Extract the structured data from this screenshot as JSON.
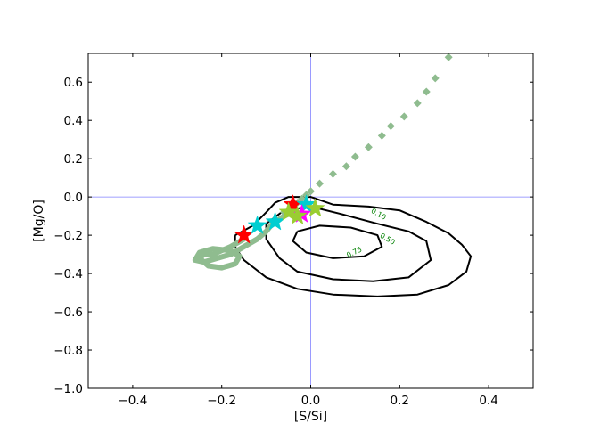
{
  "chart_data": {
    "type": "line",
    "title": "",
    "xlabel": "[S/Si]",
    "ylabel": "[Mg/O]",
    "xlim": [
      -0.5,
      0.5
    ],
    "ylim": [
      -1.0,
      0.75
    ],
    "xticks": [
      -0.4,
      -0.2,
      0.0,
      0.2,
      0.4
    ],
    "xtick_labels": [
      "−0.4",
      "−0.2",
      "0.0",
      "0.2",
      "0.4"
    ],
    "yticks": [
      -1.0,
      -0.8,
      -0.6,
      -0.4,
      -0.2,
      0.0,
      0.2,
      0.4,
      0.6
    ],
    "ytick_labels": [
      "−1.0",
      "−0.8",
      "−0.6",
      "−0.4",
      "−0.2",
      "0.0",
      "0.2",
      "0.4",
      "0.6"
    ],
    "grid": false,
    "reference_lines": {
      "x": 0.0,
      "y": 0.0,
      "color": "#8080ff"
    },
    "contours": [
      {
        "label": "0.10",
        "color": "#000000",
        "points": [
          [
            -0.17,
            -0.2
          ],
          [
            -0.13,
            -0.15
          ],
          [
            -0.1,
            -0.08
          ],
          [
            -0.08,
            -0.03
          ],
          [
            -0.05,
            0.0
          ],
          [
            0.0,
            0.0
          ],
          [
            0.05,
            -0.04
          ],
          [
            0.13,
            -0.05
          ],
          [
            0.2,
            -0.07
          ],
          [
            0.26,
            -0.13
          ],
          [
            0.31,
            -0.19
          ],
          [
            0.34,
            -0.25
          ],
          [
            0.36,
            -0.31
          ],
          [
            0.35,
            -0.39
          ],
          [
            0.31,
            -0.46
          ],
          [
            0.24,
            -0.51
          ],
          [
            0.15,
            -0.52
          ],
          [
            0.05,
            -0.51
          ],
          [
            -0.03,
            -0.48
          ],
          [
            -0.1,
            -0.42
          ],
          [
            -0.15,
            -0.33
          ],
          [
            -0.17,
            -0.26
          ],
          [
            -0.17,
            -0.2
          ]
        ],
        "label_pos": [
          0.44,
          -0.11
        ]
      },
      {
        "label": "0.50",
        "color": "#000000",
        "points": [
          [
            -0.1,
            -0.14
          ],
          [
            -0.06,
            -0.07
          ],
          [
            0.0,
            -0.05
          ],
          [
            0.07,
            -0.09
          ],
          [
            0.15,
            -0.14
          ],
          [
            0.22,
            -0.18
          ],
          [
            0.26,
            -0.23
          ],
          [
            0.27,
            -0.33
          ],
          [
            0.22,
            -0.42
          ],
          [
            0.14,
            -0.44
          ],
          [
            0.05,
            -0.43
          ],
          [
            -0.03,
            -0.39
          ],
          [
            -0.07,
            -0.32
          ],
          [
            -0.1,
            -0.22
          ],
          [
            -0.1,
            -0.14
          ]
        ],
        "label_pos": [
          0.45,
          -0.23
        ]
      },
      {
        "label": "0.75",
        "color": "#000000",
        "points": [
          [
            -0.03,
            -0.18
          ],
          [
            0.02,
            -0.15
          ],
          [
            0.09,
            -0.16
          ],
          [
            0.15,
            -0.2
          ],
          [
            0.16,
            -0.26
          ],
          [
            0.12,
            -0.31
          ],
          [
            0.05,
            -0.32
          ],
          [
            -0.01,
            -0.29
          ],
          [
            -0.04,
            -0.23
          ],
          [
            -0.03,
            -0.18
          ]
        ],
        "label_pos": [
          0.35,
          -0.3
        ]
      }
    ],
    "series": [
      {
        "style": "dotted-diamond",
        "color": "#8fbc8f",
        "x": [
          -0.06,
          -0.05,
          -0.04,
          -0.03,
          -0.02,
          -0.01,
          0.0,
          0.02,
          0.05,
          0.08,
          0.1,
          0.13,
          0.16,
          0.18,
          0.21,
          0.24,
          0.26,
          0.28,
          0.31
        ],
        "y": [
          -0.08,
          -0.07,
          -0.05,
          -0.03,
          -0.01,
          0.01,
          0.03,
          0.07,
          0.12,
          0.16,
          0.21,
          0.26,
          0.32,
          0.37,
          0.42,
          0.49,
          0.55,
          0.62,
          0.73
        ]
      },
      {
        "style": "thick-line",
        "color": "#8fbc8f",
        "x": [
          -0.15,
          -0.18,
          -0.2,
          -0.22,
          -0.24,
          -0.25,
          -0.23,
          -0.2,
          -0.17,
          -0.16,
          -0.18,
          -0.22,
          -0.25,
          -0.26,
          -0.24,
          -0.21,
          -0.18,
          -0.15,
          -0.12,
          -0.1,
          -0.09,
          -0.08,
          -0.06,
          -0.04
        ],
        "y": [
          -0.22,
          -0.26,
          -0.28,
          -0.3,
          -0.3,
          -0.32,
          -0.36,
          -0.37,
          -0.35,
          -0.31,
          -0.28,
          -0.27,
          -0.29,
          -0.33,
          -0.34,
          -0.32,
          -0.3,
          -0.26,
          -0.22,
          -0.18,
          -0.15,
          -0.13,
          -0.1,
          -0.08
        ]
      }
    ],
    "stars": [
      {
        "x": -0.15,
        "y": -0.2,
        "color": "#ff0000"
      },
      {
        "x": -0.04,
        "y": -0.04,
        "color": "#ff0000"
      },
      {
        "x": -0.08,
        "y": -0.13,
        "color": "#00ced1"
      },
      {
        "x": -0.12,
        "y": -0.15,
        "color": "#00ced1"
      },
      {
        "x": -0.01,
        "y": -0.04,
        "color": "#00ced1"
      },
      {
        "x": -0.02,
        "y": -0.09,
        "color": "#ff00ff"
      },
      {
        "x": -0.03,
        "y": -0.1,
        "color": "#9acd32"
      },
      {
        "x": 0.01,
        "y": -0.06,
        "color": "#9acd32"
      },
      {
        "x": -0.05,
        "y": -0.08,
        "color": "#9acd32"
      }
    ]
  }
}
